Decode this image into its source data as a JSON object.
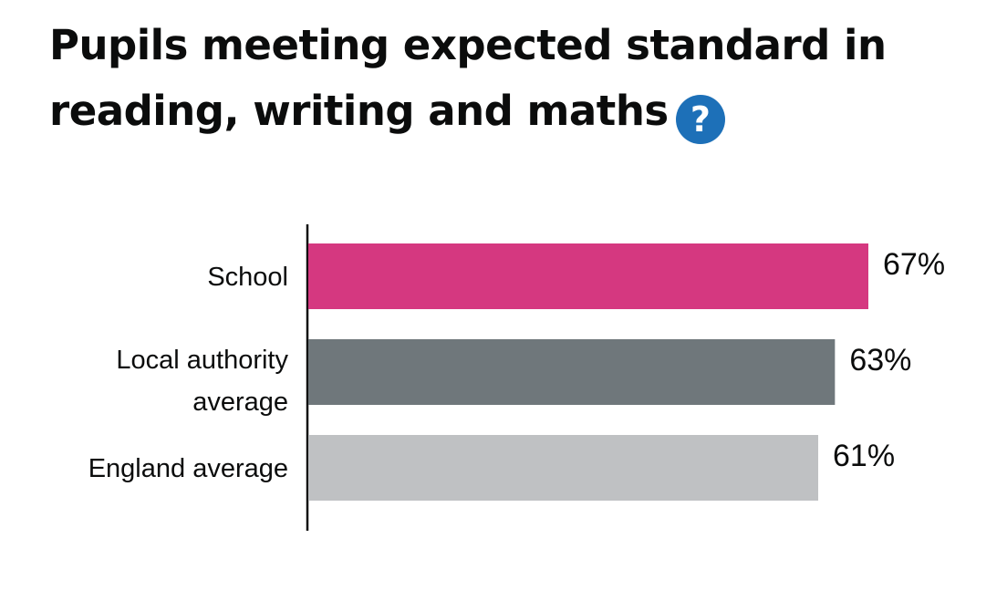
{
  "title_lines": [
    "Pupils meeting expected standard in",
    "reading, writing and maths"
  ],
  "help_icon": {
    "icon": "question-circle-icon",
    "glyph": "?",
    "color": "#1d70b8"
  },
  "chart_data": {
    "type": "bar",
    "orientation": "horizontal",
    "title": "Pupils meeting expected standard in reading, writing and maths",
    "categories": [
      [
        "School"
      ],
      [
        "Local authority",
        "average"
      ],
      [
        "England average"
      ]
    ],
    "values": [
      67,
      63,
      61
    ],
    "value_labels": [
      "67%",
      "63%",
      "61%"
    ],
    "unit": "%",
    "colors": [
      "#d53880",
      "#6f777b",
      "#bfc1c3"
    ],
    "xlim": [
      0,
      100
    ],
    "grid": false,
    "legend": "none"
  }
}
